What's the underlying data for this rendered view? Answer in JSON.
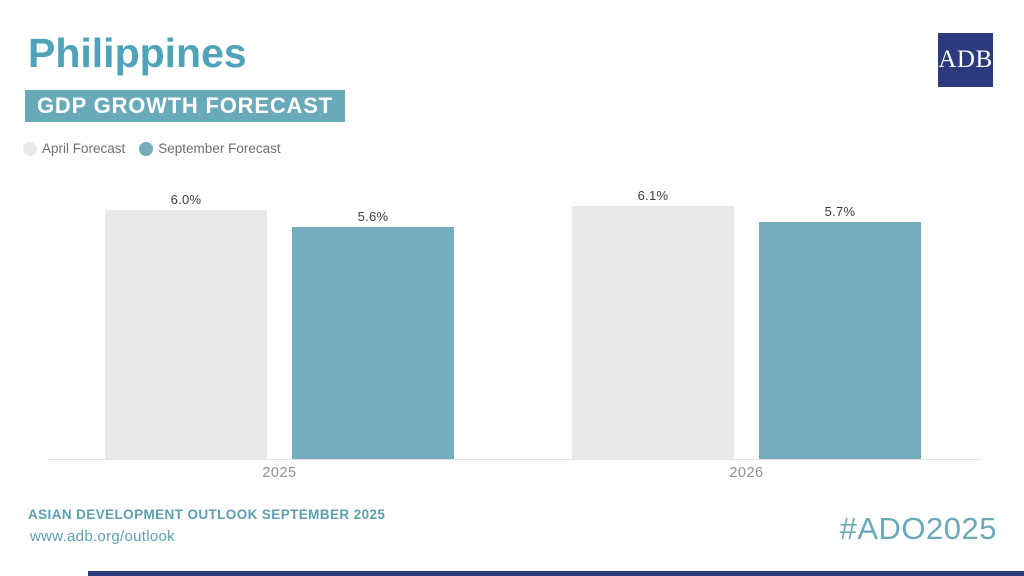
{
  "title": "Philippines",
  "banner": "GDP GROWTH FORECAST",
  "logo_text": "ADB",
  "legend": [
    {
      "label": "April Forecast",
      "color": "#e9e9e9"
    },
    {
      "label": "September Forecast",
      "color": "#74aebc"
    }
  ],
  "chart_data": {
    "type": "bar",
    "title": "Philippines GDP Growth Forecast",
    "categories": [
      "2025",
      "2026"
    ],
    "series": [
      {
        "name": "April Forecast",
        "color": "#e9e9e9",
        "values": [
          6.0,
          6.1
        ],
        "labels": [
          "6.0%",
          "6.1%"
        ]
      },
      {
        "name": "September Forecast",
        "color": "#74aebc",
        "values": [
          5.6,
          5.7
        ],
        "labels": [
          "5.6%",
          "5.7%"
        ]
      }
    ],
    "unit": "%",
    "ylim": [
      0,
      6.5
    ],
    "grid": false,
    "value_labels_shown": true,
    "legend_position": "top-left"
  },
  "footer": {
    "line1": "ASIAN DEVELOPMENT OUTLOOK SEPTEMBER 2025",
    "line2": "www.adb.org/outlook",
    "hashtag": "#ADO2025"
  },
  "colors": {
    "accent_teal": "#68aab9",
    "title_teal": "#4fa3b8",
    "footer_teal": "#5c9fb0",
    "navy": "#2a3a7c",
    "april_gray": "#e9e9e9",
    "september_teal": "#74aebc",
    "value_label": "#3c3c3c",
    "axis_label": "#8f8f8f",
    "axis_line": "#e4e4e4"
  }
}
